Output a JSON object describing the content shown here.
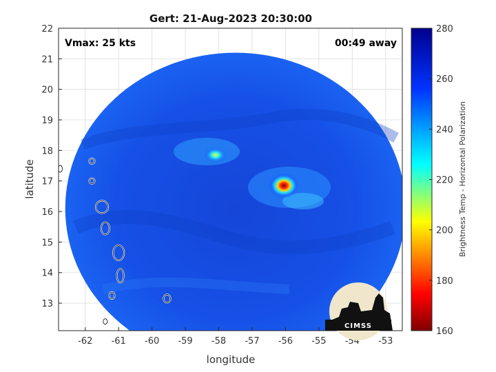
{
  "chart_data": {
    "type": "heatmap",
    "title": "Gert: 21-Aug-2023 20:30:00",
    "annotations": {
      "vmax": "Vmax: 25 kts",
      "time_away": "00:49 away"
    },
    "xlabel": "longitude",
    "ylabel": "latitude",
    "xlim": [
      -62.8,
      -52.5
    ],
    "ylim": [
      12.1,
      22.0
    ],
    "x_ticks": [
      -62,
      -61,
      -60,
      -59,
      -58,
      -57,
      -56,
      -55,
      -54,
      -53
    ],
    "y_ticks": [
      13,
      14,
      15,
      16,
      17,
      18,
      19,
      20,
      21,
      22
    ],
    "grid": true,
    "colorbar": {
      "label": "Brightness Temp - Horizontal Polarization",
      "range": [
        160,
        280
      ],
      "ticks": [
        160,
        180,
        200,
        220,
        240,
        260,
        280
      ],
      "colormap": [
        "#7f0000",
        "#ff0000",
        "#ffff00",
        "#00ffff",
        "#0000ff",
        "#00008f"
      ]
    },
    "swath": {
      "center": [
        -57.5,
        16.1
      ],
      "radius_deg": 5.1,
      "background_value": 262
    },
    "features": [
      {
        "name": "convective core east",
        "lon": -56.05,
        "lat": 16.85,
        "min_value": 170
      },
      {
        "name": "convective cluster north",
        "lon": -58.1,
        "lat": 17.85,
        "min_value": 215
      }
    ],
    "coastline_islands": [
      {
        "name": "Saba/Statia",
        "lon": -62.75,
        "lat": 17.4
      },
      {
        "name": "St Kitts",
        "lon": -61.8,
        "lat": 17.65
      },
      {
        "name": "Montserrat",
        "lon": -61.8,
        "lat": 17.0
      },
      {
        "name": "Guadeloupe",
        "lon": -61.5,
        "lat": 16.15
      },
      {
        "name": "Dominica",
        "lon": -61.4,
        "lat": 15.45
      },
      {
        "name": "Martinique",
        "lon": -61.0,
        "lat": 14.65
      },
      {
        "name": "St Lucia",
        "lon": -60.95,
        "lat": 13.9
      },
      {
        "name": "St Vincent",
        "lon": -61.2,
        "lat": 13.25
      },
      {
        "name": "Barbados",
        "lon": -59.55,
        "lat": 13.15
      },
      {
        "name": "Grenadines",
        "lon": -61.4,
        "lat": 12.4
      }
    ]
  },
  "logo": {
    "text": "CIMSS"
  }
}
